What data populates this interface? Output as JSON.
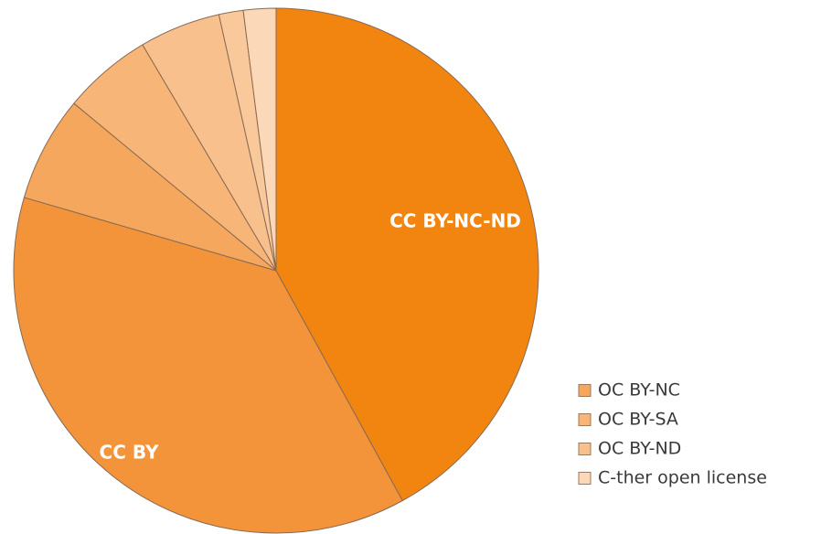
{
  "chart_data": {
    "type": "pie",
    "start_angle_deg": 0,
    "direction": "clockwise",
    "slice_labels_shown": [
      "CC BY-NC-ND",
      "CC BY"
    ],
    "legend_position": "bottom-right",
    "slices": [
      {
        "label": "CC BY-NC-ND",
        "value": 42.0,
        "color": "#f28410"
      },
      {
        "label": "CC BY",
        "value": 37.5,
        "color": "#f4943a"
      },
      {
        "label": "OC BY-NC",
        "value": 6.5,
        "color": "#f5a75e"
      },
      {
        "label": "OC BY-SA",
        "value": 5.5,
        "color": "#f7b677"
      },
      {
        "label": "OC BY-ND",
        "value": 5.0,
        "color": "#f8c08c"
      },
      {
        "label": "",
        "value": 1.5,
        "color": "#f9c99c"
      },
      {
        "label": "C-ther open license",
        "value": 2.0,
        "color": "#fbd8b8"
      }
    ],
    "legend": [
      {
        "label": "OC BY-NC",
        "color": "#f5a75e"
      },
      {
        "label": "OC BY-SA",
        "color": "#f7b677"
      },
      {
        "label": "OC BY-ND",
        "color": "#f8c08c"
      },
      {
        "label": "C-ther open license",
        "color": "#fbd8b8"
      }
    ]
  }
}
